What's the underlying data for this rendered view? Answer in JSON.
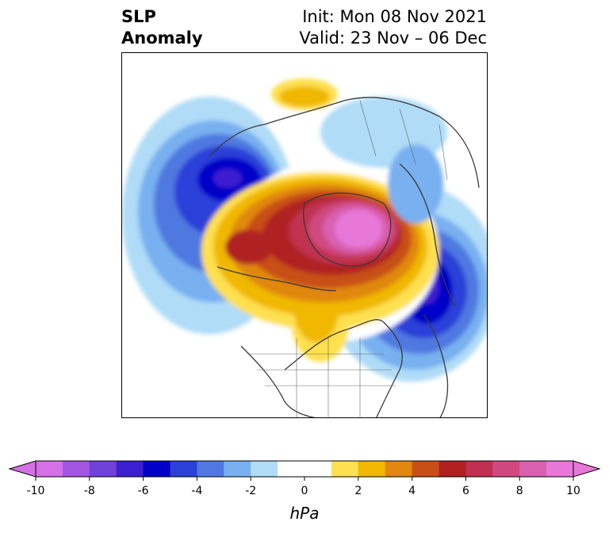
{
  "title": {
    "line1": "SLP",
    "line2": "Anomaly"
  },
  "subtitle": {
    "init": "Init: Mon 08 Nov 2021",
    "valid": "Valid: 23 Nov – 06 Dec"
  },
  "colorbar": {
    "unit": "hPa",
    "ticks": [
      "-10",
      "-8",
      "-6",
      "-4",
      "-2",
      "0",
      "2",
      "4",
      "6",
      "8",
      "10"
    ],
    "colors": [
      "#d670e6",
      "#a356e0",
      "#7040d8",
      "#3c1fd0",
      "#0000c8",
      "#2a40d8",
      "#5078e0",
      "#78b0f0",
      "#b0dcf8",
      "#ffffff",
      "#ffffff",
      "#ffe050",
      "#f0b800",
      "#e08810",
      "#c85018",
      "#b02020",
      "#c03050",
      "#d04880",
      "#d860b0",
      "#e878d8"
    ],
    "min_extend_color": "#d670e6",
    "max_extend_color": "#e878d8"
  }
}
